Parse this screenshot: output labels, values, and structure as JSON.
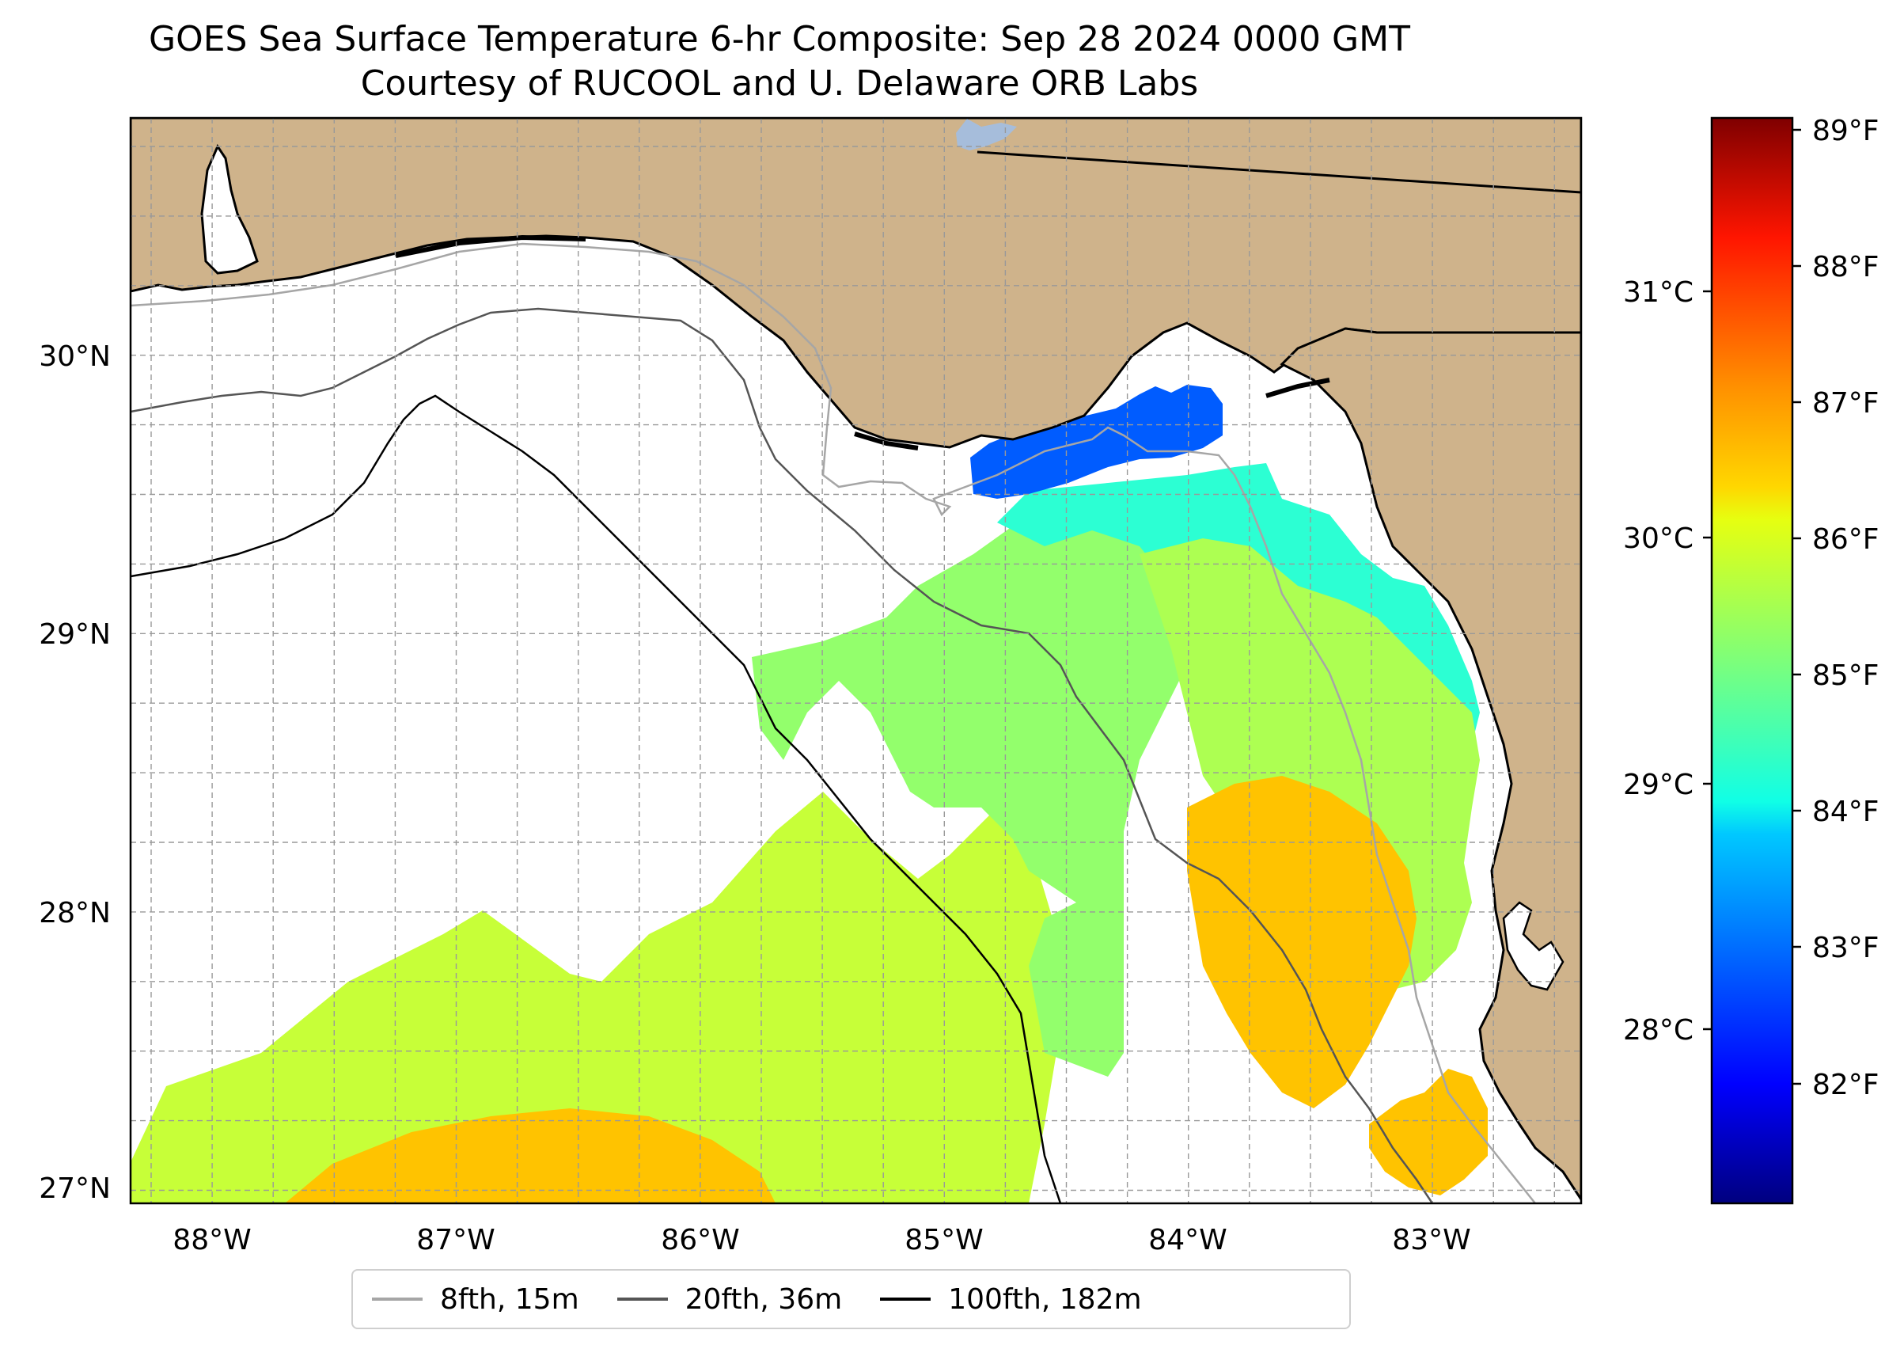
{
  "title": {
    "line1": "GOES Sea Surface Temperature 6-hr Composite: Sep 28 2024 0000 GMT",
    "line2": "Courtesy of RUCOOL and U. Delaware ORB Labs"
  },
  "map": {
    "extent": {
      "lon_min": -88.33,
      "lon_max": -82.37,
      "lat_min": 26.94,
      "lat_max": 30.84
    },
    "land_color": "#cfb38b",
    "water_color": "#ffffff",
    "lake_color": "#a6bddb",
    "grid": true,
    "lat_ticks": [
      "30°N",
      "29°N",
      "28°N",
      "27°N"
    ],
    "lon_ticks": [
      "88°W",
      "87°W",
      "86°W",
      "85°W",
      "84°W",
      "83°W"
    ]
  },
  "colorbar": {
    "colormap": "jet",
    "celsius_ticks": [
      "31°C",
      "30°C",
      "29°C",
      "28°C"
    ],
    "fahrenheit_ticks": [
      "89°F",
      "88°F",
      "87°F",
      "86°F",
      "85°F",
      "84°F",
      "83°F",
      "82°F"
    ]
  },
  "legend": {
    "items": [
      {
        "label": "8fth, 15m",
        "color": "#a6a6a6"
      },
      {
        "label": "20fth, 36m",
        "color": "#555555"
      },
      {
        "label": "100fth, 182m",
        "color": "#000000"
      }
    ]
  },
  "sst_regions": [
    {
      "name": "northern-bay-cold",
      "value_f": 82.9
    },
    {
      "name": "big-bend-shelf",
      "value_f": 84.5
    },
    {
      "name": "nearshore-west-florida",
      "value_f": 85.5
    },
    {
      "name": "central-shelf",
      "value_f": 85.3
    },
    {
      "name": "tampa-offshore",
      "value_f": 86.6
    },
    {
      "name": "southwest-gulf",
      "value_f": 85.7
    },
    {
      "name": "southern-warm-band",
      "value_f": 86.6
    }
  ]
}
